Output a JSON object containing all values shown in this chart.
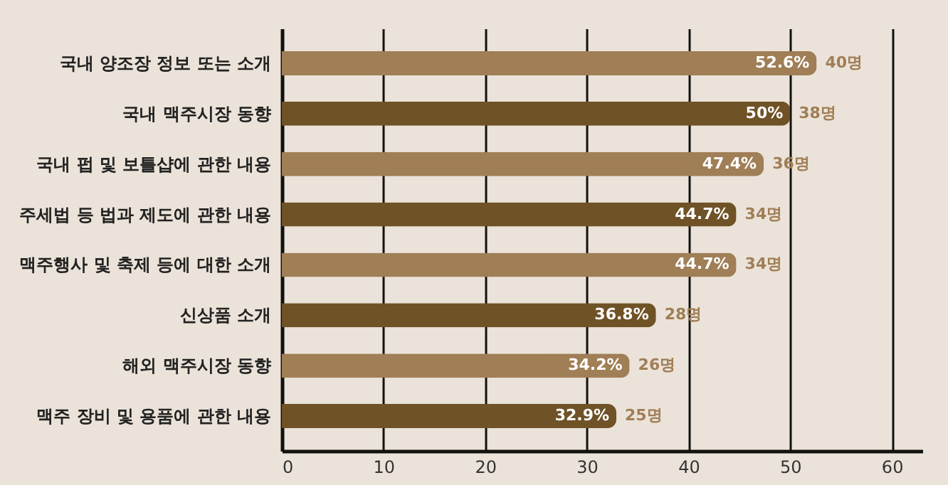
{
  "chart_data": {
    "type": "bar",
    "orientation": "horizontal",
    "categories": [
      "국내 양조장 정보 또는 소개",
      "국내 맥주시장 동향",
      "국내 펍 및 보틀샵에 관한 내용",
      "주세법 등 법과 제도에 관한 내용",
      "맥주행사 및 축제 등에 대한 소개",
      "신상품 소개",
      "해외 맥주시장 동향",
      "맥주 장비 및 용품에 관한 내용"
    ],
    "values": [
      52.6,
      50,
      47.4,
      44.7,
      44.7,
      36.8,
      34.2,
      32.9
    ],
    "colors": [
      "#a07e56",
      "#6f5226",
      "#a07e56",
      "#6f5226",
      "#a07e56",
      "#6f5226",
      "#a07e56",
      "#6f5226"
    ],
    "value_labels": [
      "52.6%",
      "50%",
      "47.4%",
      "44.7%",
      "44.7%",
      "36.8%",
      "34.2%",
      "32.9%"
    ],
    "annotations": [
      {
        "text": "40명",
        "x": 52.6,
        "y": "국내 양조장 정보 또는 소개"
      },
      {
        "text": "38명",
        "x": 50,
        "y": "국내 맥주시장 동향"
      },
      {
        "text": "36명",
        "x": 47.4,
        "y": "국내 펍 및 보틀샵에 관한 내용"
      },
      {
        "text": "34명",
        "x": 44.7,
        "y": "주세법 등 법과 제도에 관한 내용"
      },
      {
        "text": "34명",
        "x": 44.7,
        "y": "맥주행사 및 축제 등에 대한 소개"
      },
      {
        "text": "28명",
        "x": 36.8,
        "y": "신상품 소개"
      },
      {
        "text": "26명",
        "x": 34.2,
        "y": "해외 맥주시장 동향"
      },
      {
        "text": "25명",
        "x": 32.9,
        "y": "맥주 장비 및 용품에 관한 내용"
      }
    ],
    "xlim": [
      0,
      63
    ],
    "xticks": [
      0,
      10,
      20,
      30,
      40,
      50,
      60
    ],
    "grid": "x"
  }
}
